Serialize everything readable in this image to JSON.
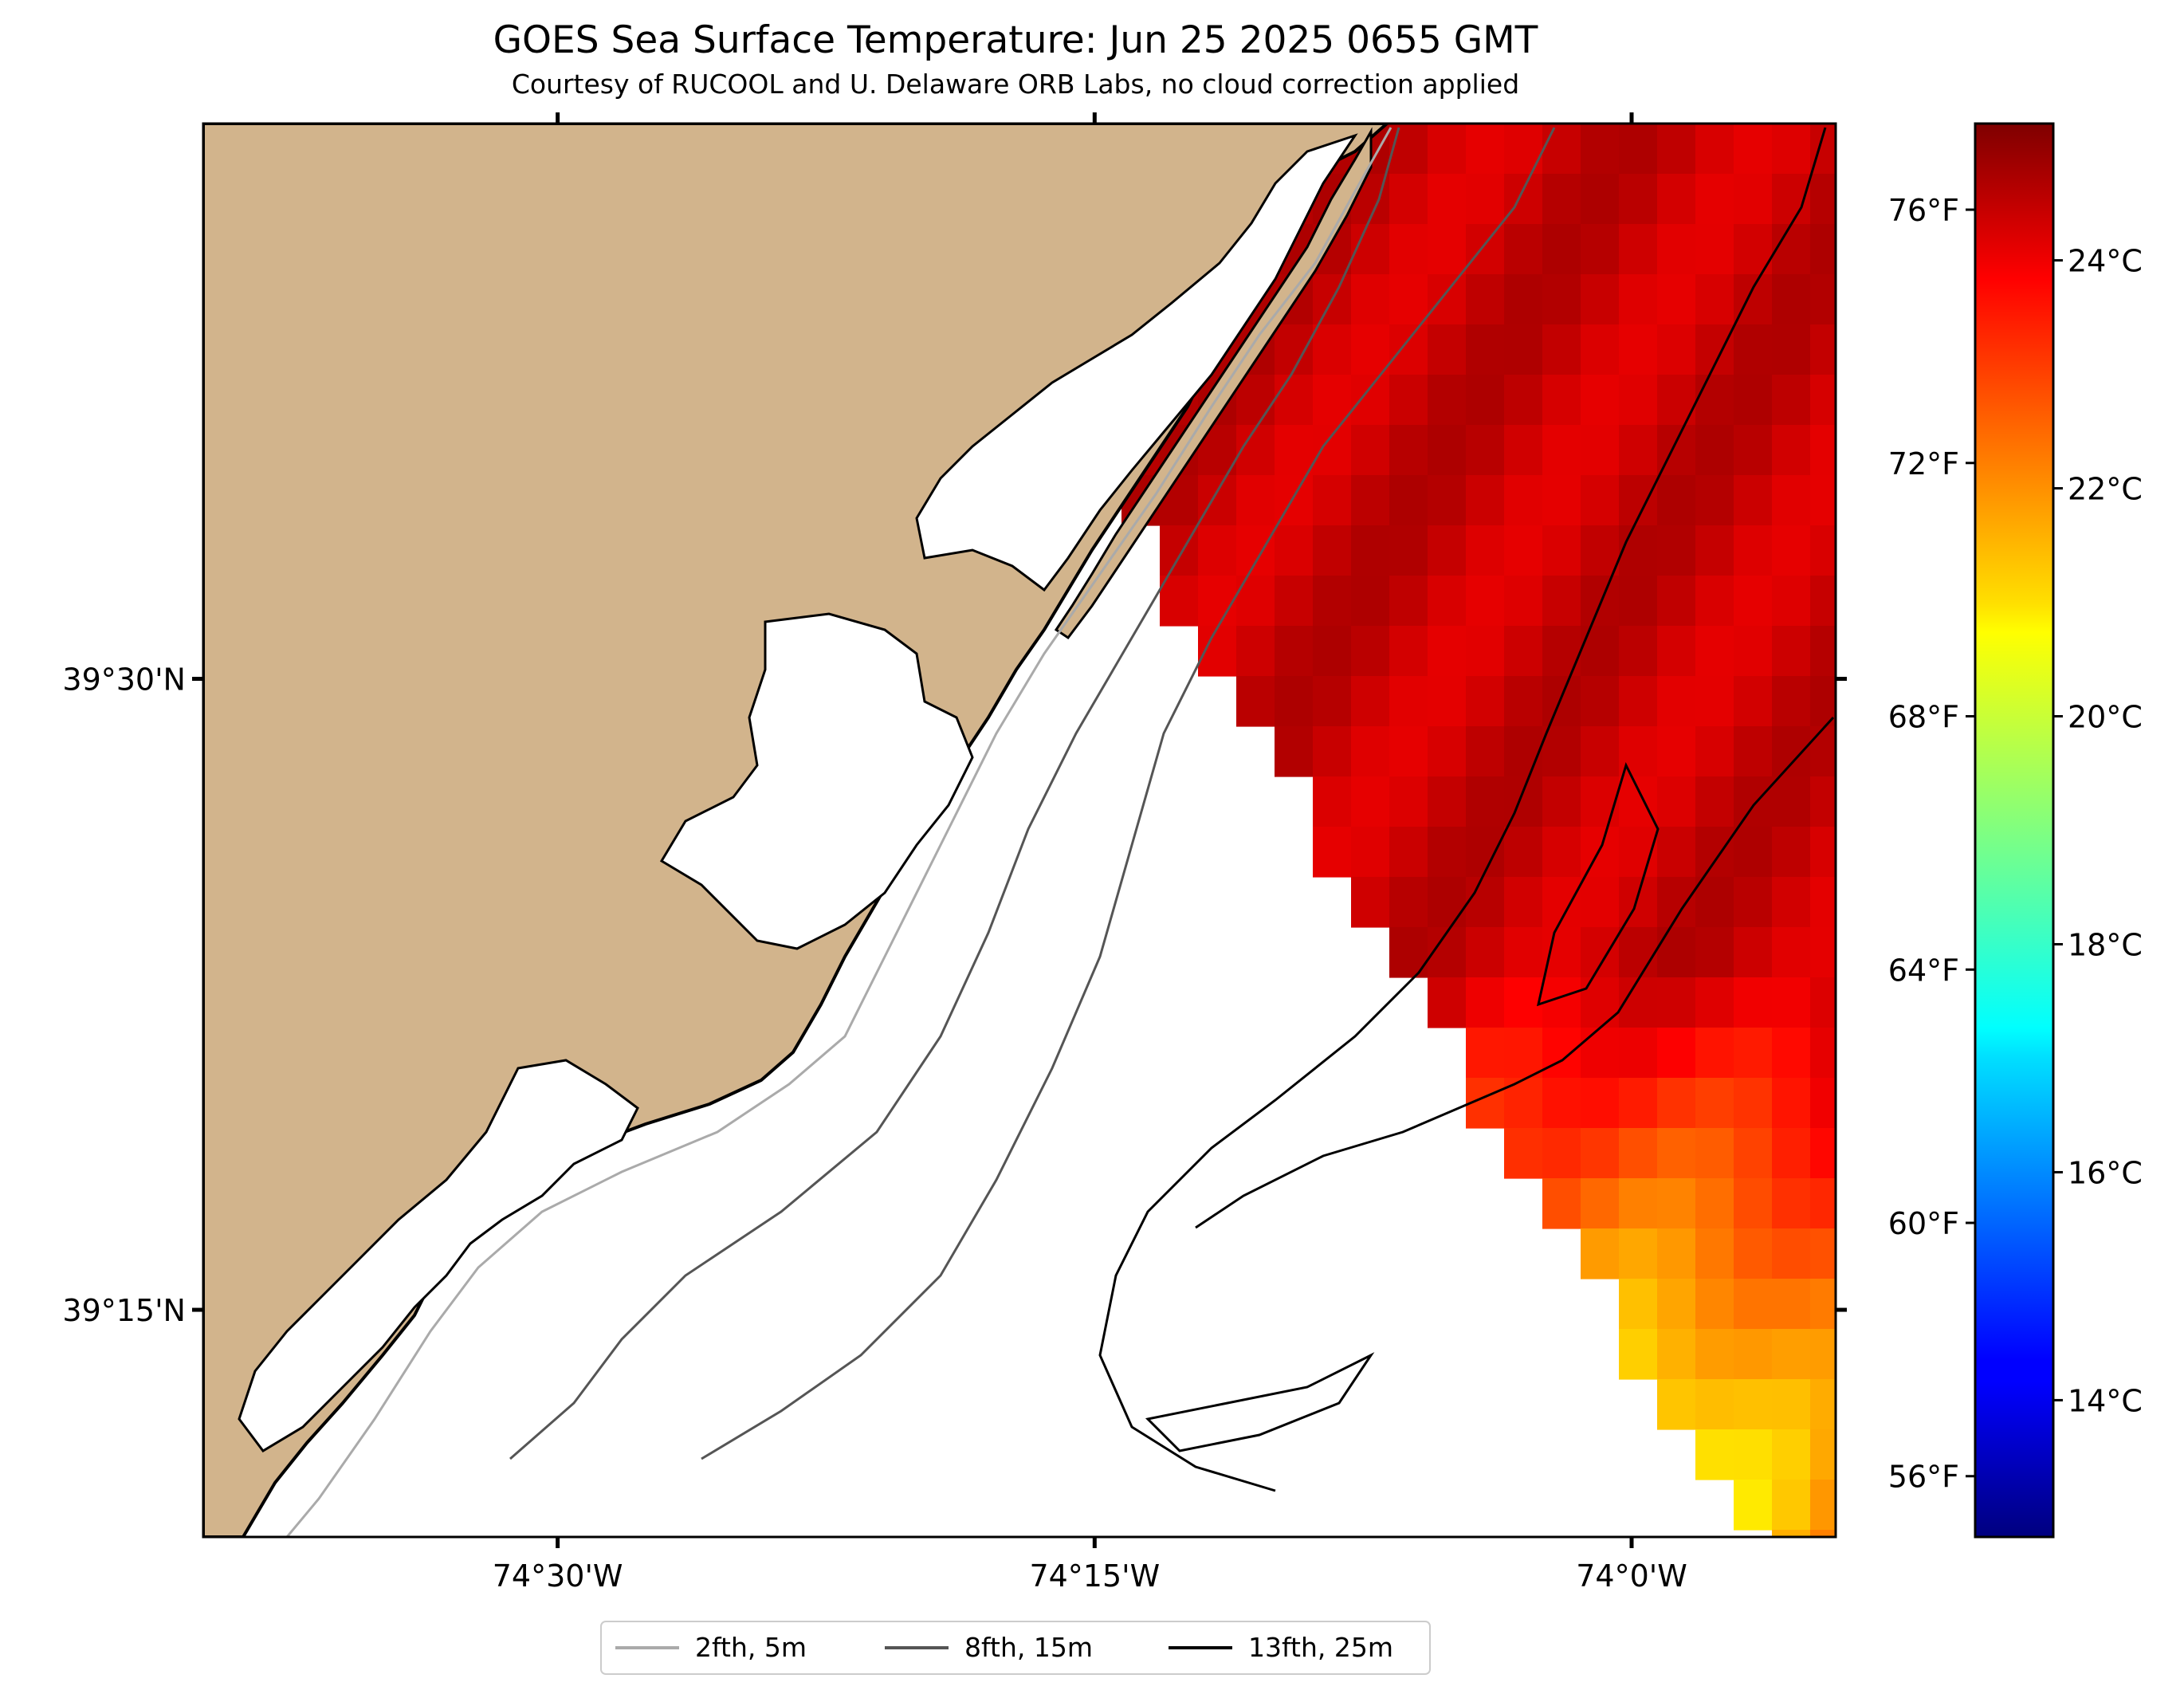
{
  "title": "GOES Sea Surface Temperature: Jun 25 2025 0655 GMT",
  "subtitle": "Courtesy of RUCOOL and U. Delaware ORB Labs, no cloud correction applied",
  "axes": {
    "lat_ticks": [
      {
        "value": 39.5,
        "label": "39°30'N"
      },
      {
        "value": 39.25,
        "label": "39°15'N"
      }
    ],
    "lon_ticks": [
      {
        "value": -74.5,
        "label": "74°30'W"
      },
      {
        "value": -74.25,
        "label": "74°15'W"
      },
      {
        "value": -74.0,
        "label": "74°0'W"
      }
    ],
    "lon_range": [
      -74.665,
      -73.905
    ],
    "lat_range": [
      39.16,
      39.72
    ]
  },
  "colorbar": {
    "colormap": "jet",
    "range_c": [
      12.8,
      25.2
    ],
    "celsius_ticks": [
      {
        "value": 14,
        "label": "14°C"
      },
      {
        "value": 16,
        "label": "16°C"
      },
      {
        "value": 18,
        "label": "18°C"
      },
      {
        "value": 20,
        "label": "20°C"
      },
      {
        "value": 22,
        "label": "22°C"
      },
      {
        "value": 24,
        "label": "24°C"
      }
    ],
    "fahrenheit_ticks": [
      {
        "value": 56,
        "label": "56°F"
      },
      {
        "value": 60,
        "label": "60°F"
      },
      {
        "value": 64,
        "label": "64°F"
      },
      {
        "value": 68,
        "label": "68°F"
      },
      {
        "value": 72,
        "label": "72°F"
      },
      {
        "value": 76,
        "label": "76°F"
      }
    ]
  },
  "legend": {
    "placement": "bottom-center",
    "items": [
      {
        "label": "2fth, 5m",
        "color": "#aaaaaa"
      },
      {
        "label": "8fth, 15m",
        "color": "#555555"
      },
      {
        "label": "13fth, 25m",
        "color": "#000000"
      }
    ]
  },
  "colors": {
    "land": "#d2b48c",
    "coastline": "#000000",
    "no_data": "#ffffff"
  }
}
